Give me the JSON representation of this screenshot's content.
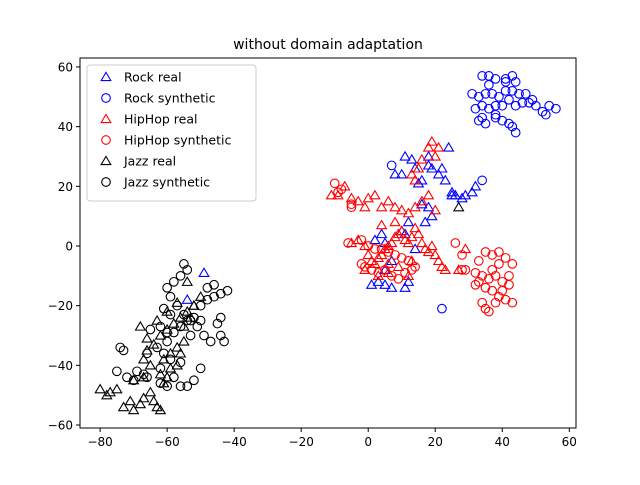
{
  "chart_data": {
    "type": "scatter",
    "title": "without domain adaptation",
    "xlabel": "",
    "ylabel": "",
    "xlim": [
      -86,
      62
    ],
    "ylim": [
      -61,
      63
    ],
    "xticks": [
      -80,
      -60,
      -40,
      -20,
      0,
      20,
      40,
      60
    ],
    "yticks": [
      -60,
      -40,
      -20,
      0,
      20,
      40,
      60
    ],
    "grid": false,
    "legend_position": "top-left",
    "series": [
      {
        "name": "Rock real",
        "marker": "triangle",
        "color": "#0000ff",
        "points": [
          [
            -49,
            -9
          ],
          [
            -54,
            -18
          ],
          [
            1,
            -13
          ],
          [
            3,
            -12
          ],
          [
            5,
            -13
          ],
          [
            7,
            -14
          ],
          [
            11,
            -14
          ],
          [
            12,
            -12
          ],
          [
            2,
            2
          ],
          [
            4,
            4
          ],
          [
            5,
            1
          ],
          [
            11,
            4
          ],
          [
            12,
            8
          ],
          [
            8,
            24
          ],
          [
            10,
            24
          ],
          [
            11,
            30
          ],
          [
            13,
            29
          ],
          [
            14,
            26
          ],
          [
            15,
            21
          ],
          [
            16,
            22
          ],
          [
            18,
            27
          ],
          [
            18,
            30
          ],
          [
            19,
            26
          ],
          [
            21,
            24
          ],
          [
            22,
            26
          ],
          [
            24,
            33
          ],
          [
            23,
            22
          ],
          [
            25,
            18
          ],
          [
            25,
            17
          ],
          [
            26,
            17
          ],
          [
            28,
            16
          ],
          [
            29,
            17
          ],
          [
            31,
            18
          ],
          [
            32,
            20
          ],
          [
            18,
            13
          ],
          [
            19,
            10
          ],
          [
            17,
            8
          ],
          [
            16,
            14
          ],
          [
            10,
            5
          ],
          [
            5,
            -8
          ],
          [
            7,
            -5
          ],
          [
            14,
            -1
          ]
        ]
      },
      {
        "name": "Rock synthetic",
        "marker": "circle",
        "color": "#0000ff",
        "points": [
          [
            22,
            -21
          ],
          [
            7,
            27
          ],
          [
            34,
            22
          ],
          [
            34,
            57
          ],
          [
            36,
            57
          ],
          [
            38,
            56
          ],
          [
            41,
            56
          ],
          [
            43,
            57
          ],
          [
            44,
            55
          ],
          [
            31,
            51
          ],
          [
            33,
            50
          ],
          [
            35,
            51
          ],
          [
            37,
            51
          ],
          [
            39,
            50
          ],
          [
            41,
            52
          ],
          [
            43,
            52
          ],
          [
            45,
            51
          ],
          [
            47,
            51
          ],
          [
            32,
            46
          ],
          [
            34,
            47
          ],
          [
            36,
            46
          ],
          [
            38,
            47
          ],
          [
            40,
            47
          ],
          [
            42,
            49
          ],
          [
            44,
            47
          ],
          [
            46,
            48
          ],
          [
            48,
            48
          ],
          [
            50,
            47
          ],
          [
            52,
            45
          ],
          [
            54,
            47
          ],
          [
            56,
            46
          ],
          [
            33,
            42
          ],
          [
            35,
            41
          ],
          [
            38,
            43
          ],
          [
            40,
            42
          ],
          [
            42,
            41
          ],
          [
            43,
            40
          ],
          [
            44,
            38
          ],
          [
            34,
            43
          ],
          [
            41,
            55
          ],
          [
            53,
            44
          ],
          [
            49,
            49
          ],
          [
            36,
            54
          ],
          [
            38,
            44
          ]
        ]
      },
      {
        "name": "HipHop real",
        "marker": "triangle",
        "color": "#ff0000",
        "points": [
          [
            -11,
            17
          ],
          [
            -9,
            17
          ],
          [
            -7,
            20
          ],
          [
            -5,
            16
          ],
          [
            -3,
            15
          ],
          [
            -1,
            13
          ],
          [
            0,
            16
          ],
          [
            2,
            17
          ],
          [
            4,
            13
          ],
          [
            6,
            15
          ],
          [
            8,
            13
          ],
          [
            10,
            12
          ],
          [
            12,
            11
          ],
          [
            14,
            13
          ],
          [
            16,
            15
          ],
          [
            18,
            17
          ],
          [
            20,
            12
          ],
          [
            16,
            29
          ],
          [
            18,
            33
          ],
          [
            19,
            35
          ],
          [
            20,
            30
          ],
          [
            21,
            33
          ],
          [
            14,
            22
          ],
          [
            13,
            24
          ],
          [
            15,
            26
          ],
          [
            -5,
            1
          ],
          [
            -3,
            2
          ],
          [
            -1,
            0
          ],
          [
            0,
            -3
          ],
          [
            1,
            -5
          ],
          [
            2,
            -6
          ],
          [
            3,
            -4
          ],
          [
            4,
            -3
          ],
          [
            5,
            -1
          ],
          [
            6,
            0
          ],
          [
            7,
            1
          ],
          [
            8,
            3
          ],
          [
            9,
            4
          ],
          [
            10,
            5
          ],
          [
            11,
            2
          ],
          [
            12,
            1
          ],
          [
            13,
            3
          ],
          [
            14,
            6
          ],
          [
            15,
            4
          ],
          [
            16,
            1
          ],
          [
            17,
            -1
          ],
          [
            18,
            -2
          ],
          [
            19,
            0
          ],
          [
            20,
            -3
          ],
          [
            21,
            -5
          ],
          [
            22,
            -7
          ],
          [
            23,
            -8
          ],
          [
            27,
            -8
          ],
          [
            29,
            -1
          ],
          [
            -1,
            -8
          ],
          [
            3,
            -10
          ],
          [
            6,
            -9
          ],
          [
            9,
            -7
          ],
          [
            12,
            -10
          ],
          [
            4,
            7
          ],
          [
            8,
            8
          ],
          [
            6,
            -6
          ],
          [
            13,
            -5
          ]
        ]
      },
      {
        "name": "HipHop synthetic",
        "marker": "circle",
        "color": "#ff0000",
        "points": [
          [
            -9,
            18
          ],
          [
            -8,
            19
          ],
          [
            -10,
            21
          ],
          [
            -5,
            14
          ],
          [
            -5,
            13
          ],
          [
            -6,
            1
          ],
          [
            -2,
            2
          ],
          [
            0,
            0
          ],
          [
            2,
            -1
          ],
          [
            4,
            -1
          ],
          [
            6,
            -2
          ],
          [
            8,
            -3
          ],
          [
            10,
            -4
          ],
          [
            12,
            -5
          ],
          [
            13,
            -8
          ],
          [
            14,
            -7
          ],
          [
            -2,
            -6
          ],
          [
            -1,
            -7
          ],
          [
            1,
            -8
          ],
          [
            3,
            -9
          ],
          [
            5,
            -8
          ],
          [
            7,
            -10
          ],
          [
            9,
            -11
          ],
          [
            11,
            -9
          ],
          [
            26,
            1
          ],
          [
            28,
            -3
          ],
          [
            28,
            -8
          ],
          [
            29,
            -8
          ],
          [
            33,
            -5
          ],
          [
            35,
            -2
          ],
          [
            37,
            -3
          ],
          [
            39,
            -2
          ],
          [
            41,
            -4
          ],
          [
            43,
            -6
          ],
          [
            32,
            -9
          ],
          [
            34,
            -10
          ],
          [
            36,
            -11
          ],
          [
            38,
            -10
          ],
          [
            40,
            -12
          ],
          [
            42,
            -13
          ],
          [
            33,
            -12
          ],
          [
            35,
            -14
          ],
          [
            37,
            -15
          ],
          [
            39,
            -17
          ],
          [
            41,
            -18
          ],
          [
            43,
            -19
          ],
          [
            34,
            -19
          ],
          [
            35,
            -21
          ],
          [
            36,
            -22
          ],
          [
            38,
            -19
          ],
          [
            40,
            -15
          ],
          [
            42,
            -10
          ],
          [
            32,
            -13
          ],
          [
            37,
            -8
          ],
          [
            39,
            -6
          ]
        ]
      },
      {
        "name": "Jazz real",
        "marker": "triangle",
        "color": "#000000",
        "points": [
          [
            -80,
            -48
          ],
          [
            -78,
            -50
          ],
          [
            -77,
            -49
          ],
          [
            -75,
            -48
          ],
          [
            -73,
            -54
          ],
          [
            -71,
            -52
          ],
          [
            -70,
            -55
          ],
          [
            -68,
            -53
          ],
          [
            -67,
            -51
          ],
          [
            -65,
            -49
          ],
          [
            -64,
            -52
          ],
          [
            -63,
            -54
          ],
          [
            -62,
            -55
          ],
          [
            -61,
            -46
          ],
          [
            -60,
            -44
          ],
          [
            -62,
            -43
          ],
          [
            -65,
            -40
          ],
          [
            -67,
            -38
          ],
          [
            -66,
            -35
          ],
          [
            -64,
            -33
          ],
          [
            -62,
            -30
          ],
          [
            -60,
            -28
          ],
          [
            -58,
            -26
          ],
          [
            -56,
            -24
          ],
          [
            -54,
            -22
          ],
          [
            -52,
            -20
          ],
          [
            -50,
            -17
          ],
          [
            -61,
            -38
          ],
          [
            -59,
            -36
          ],
          [
            -57,
            -34
          ],
          [
            -55,
            -32
          ],
          [
            -63,
            -25
          ],
          [
            -68,
            -27
          ],
          [
            -66,
            -31
          ],
          [
            -60,
            -22
          ],
          [
            -57,
            -19
          ],
          [
            -55,
            -27
          ],
          [
            -53,
            -24
          ],
          [
            -59,
            -41
          ],
          [
            -57,
            -40
          ],
          [
            -56,
            -36
          ],
          [
            -70,
            -45
          ],
          [
            -67,
            -44
          ],
          [
            27,
            13
          ],
          [
            -54,
            -12
          ],
          [
            -52,
            -20
          ]
        ]
      },
      {
        "name": "Jazz synthetic",
        "marker": "circle",
        "color": "#000000",
        "points": [
          [
            -74,
            -34
          ],
          [
            -73,
            -35
          ],
          [
            -75,
            -42
          ],
          [
            -72,
            -44
          ],
          [
            -70,
            -45
          ],
          [
            -69,
            -42
          ],
          [
            -67,
            -43
          ],
          [
            -66,
            -44
          ],
          [
            -62,
            -46
          ],
          [
            -60,
            -47
          ],
          [
            -58,
            -44
          ],
          [
            -56,
            -47
          ],
          [
            -54,
            -47
          ],
          [
            -52,
            -45
          ],
          [
            -50,
            -41
          ],
          [
            -62,
            -41
          ],
          [
            -63,
            -34
          ],
          [
            -61,
            -36
          ],
          [
            -59,
            -38
          ],
          [
            -56,
            -39
          ],
          [
            -60,
            -32
          ],
          [
            -58,
            -29
          ],
          [
            -56,
            -27
          ],
          [
            -54,
            -25
          ],
          [
            -52,
            -24
          ],
          [
            -50,
            -20
          ],
          [
            -48,
            -18
          ],
          [
            -46,
            -17
          ],
          [
            -44,
            -16
          ],
          [
            -42,
            -15
          ],
          [
            -60,
            -14
          ],
          [
            -58,
            -12
          ],
          [
            -56,
            -10
          ],
          [
            -54,
            -8
          ],
          [
            -55,
            -6
          ],
          [
            -59,
            -17
          ],
          [
            -57,
            -20
          ],
          [
            -55,
            -23
          ],
          [
            -53,
            -25
          ],
          [
            -51,
            -27
          ],
          [
            -49,
            -30
          ],
          [
            -47,
            -32
          ],
          [
            -45,
            -26
          ],
          [
            -44,
            -24
          ],
          [
            -44,
            -30
          ],
          [
            -43,
            -32
          ],
          [
            -61,
            -21
          ],
          [
            -59,
            -23
          ],
          [
            -62,
            -27
          ],
          [
            -60,
            -29
          ],
          [
            -65,
            -28
          ],
          [
            -66,
            -36
          ],
          [
            -53,
            -30
          ],
          [
            -50,
            -25
          ],
          [
            -48,
            -14
          ],
          [
            -46,
            -13
          ]
        ]
      }
    ]
  }
}
